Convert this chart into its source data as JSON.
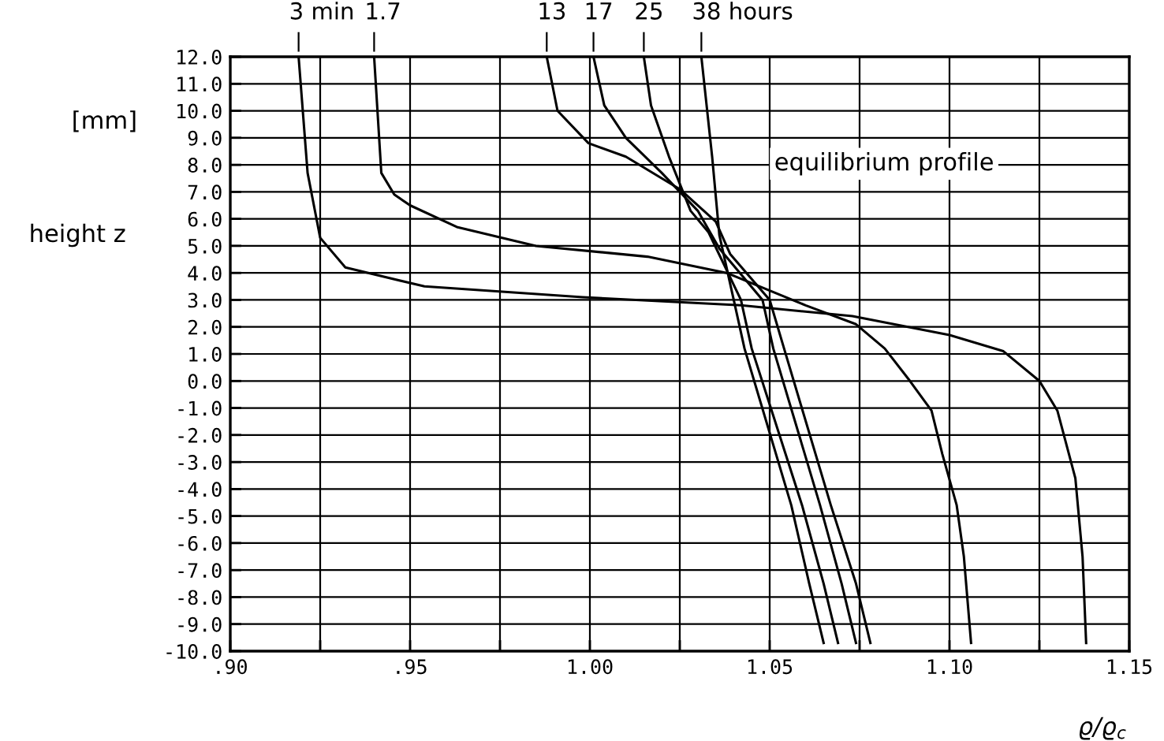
{
  "chart_data": {
    "type": "line",
    "xlabel": "ϱ/ϱ$_{c}$",
    "ylabel": "height z",
    "annotations": [
      "equilibrium profile",
      "[mm]"
    ],
    "xlim": [
      0.9,
      1.15
    ],
    "ylim": [
      -10,
      12
    ],
    "xticks": [
      {
        "value": 0.9,
        "label": ".90"
      },
      {
        "value": 0.925,
        "label": null
      },
      {
        "value": 0.95,
        "label": ".95"
      },
      {
        "value": 0.975,
        "label": null
      },
      {
        "value": 1.0,
        "label": "1.00"
      },
      {
        "value": 1.025,
        "label": null
      },
      {
        "value": 1.05,
        "label": "1.05"
      },
      {
        "value": 1.075,
        "label": null
      },
      {
        "value": 1.1,
        "label": "1.10"
      },
      {
        "value": 1.125,
        "label": null
      },
      {
        "value": 1.15,
        "label": "1.15"
      }
    ],
    "yticks": [
      {
        "value": 12,
        "label": "12.0"
      },
      {
        "value": 11,
        "label": "11.0"
      },
      {
        "value": 10,
        "label": "10.0"
      },
      {
        "value": 9,
        "label": "9.0"
      },
      {
        "value": 8,
        "label": "8.0"
      },
      {
        "value": 7,
        "label": "7.0"
      },
      {
        "value": 6,
        "label": "6.0"
      },
      {
        "value": 5,
        "label": "5.0"
      },
      {
        "value": 4,
        "label": "4.0"
      },
      {
        "value": 3,
        "label": "3.0"
      },
      {
        "value": 2,
        "label": "2.0"
      },
      {
        "value": 1,
        "label": "1.0"
      },
      {
        "value": 0,
        "label": "0.0"
      },
      {
        "value": -1,
        "label": "-1.0"
      },
      {
        "value": -2,
        "label": "-2.0"
      },
      {
        "value": -3,
        "label": "-3.0"
      },
      {
        "value": -4,
        "label": "-4.0"
      },
      {
        "value": -5,
        "label": "-5.0"
      },
      {
        "value": -6,
        "label": "-6.0"
      },
      {
        "value": -7,
        "label": "-7.0"
      },
      {
        "value": -8,
        "label": "-8.0"
      },
      {
        "value": -9,
        "label": "-9.0"
      },
      {
        "value": -10,
        "label": "-10.0"
      }
    ],
    "grid": true,
    "line_style": "solid",
    "series": [
      {
        "name": "3 min",
        "color": "#000000",
        "x": [
          0.919,
          0.9215,
          0.925,
          0.932,
          0.954,
          0.998,
          1.042,
          1.073,
          1.1,
          1.115,
          1.125,
          1.13,
          1.135,
          1.137,
          1.138
        ],
        "values": [
          12,
          7.7,
          5.3,
          4.2,
          3.5,
          3.1,
          2.8,
          2.4,
          1.7,
          1.1,
          0.0,
          -1.1,
          -3.6,
          -6.5,
          -9.7
        ]
      },
      {
        "name": "1.7",
        "color": "#000000",
        "x": [
          0.94,
          0.942,
          0.9456,
          0.95,
          0.963,
          0.985,
          1.016,
          1.038,
          1.06,
          1.074,
          1.082,
          1.089,
          1.095,
          1.098,
          1.102,
          1.104,
          1.106
        ],
        "values": [
          12,
          7.7,
          6.9,
          6.5,
          5.7,
          5.0,
          4.6,
          4.0,
          2.8,
          2.1,
          1.2,
          0.0,
          -1.1,
          -2.7,
          -4.6,
          -6.5,
          -9.7
        ]
      },
      {
        "name": "13",
        "color": "#000000",
        "x": [
          0.988,
          0.991,
          0.9996,
          1.01,
          1.025,
          1.035,
          1.039,
          1.05,
          1.054,
          1.067,
          1.074,
          1.078
        ],
        "values": [
          12,
          10.0,
          8.8,
          8.3,
          7.1,
          5.9,
          4.7,
          3.0,
          1.2,
          -4.6,
          -7.5,
          -9.7
        ]
      },
      {
        "name": "17",
        "color": "#000000",
        "x": [
          1.001,
          1.004,
          1.01,
          1.02,
          1.03,
          1.036,
          1.048,
          1.051,
          1.064,
          1.07,
          1.074
        ],
        "values": [
          12,
          10.2,
          9.0,
          7.7,
          6.3,
          4.9,
          3.0,
          1.2,
          -4.6,
          -7.5,
          -9.7
        ]
      },
      {
        "name": "25",
        "color": "#000000",
        "x": [
          1.015,
          1.017,
          1.022,
          1.028,
          1.033,
          1.042,
          1.045,
          1.059,
          1.065,
          1.069
        ],
        "values": [
          12,
          10.2,
          8.3,
          6.3,
          5.5,
          3.0,
          1.2,
          -4.6,
          -7.5,
          -9.7
        ]
      },
      {
        "name": "38 hours",
        "color": "#000000",
        "x": [
          1.031,
          1.034,
          1.036,
          1.04,
          1.043,
          1.056,
          1.061,
          1.065
        ],
        "values": [
          12,
          8.3,
          5.4,
          3.0,
          1.2,
          -4.6,
          -7.5,
          -9.7
        ]
      }
    ]
  }
}
